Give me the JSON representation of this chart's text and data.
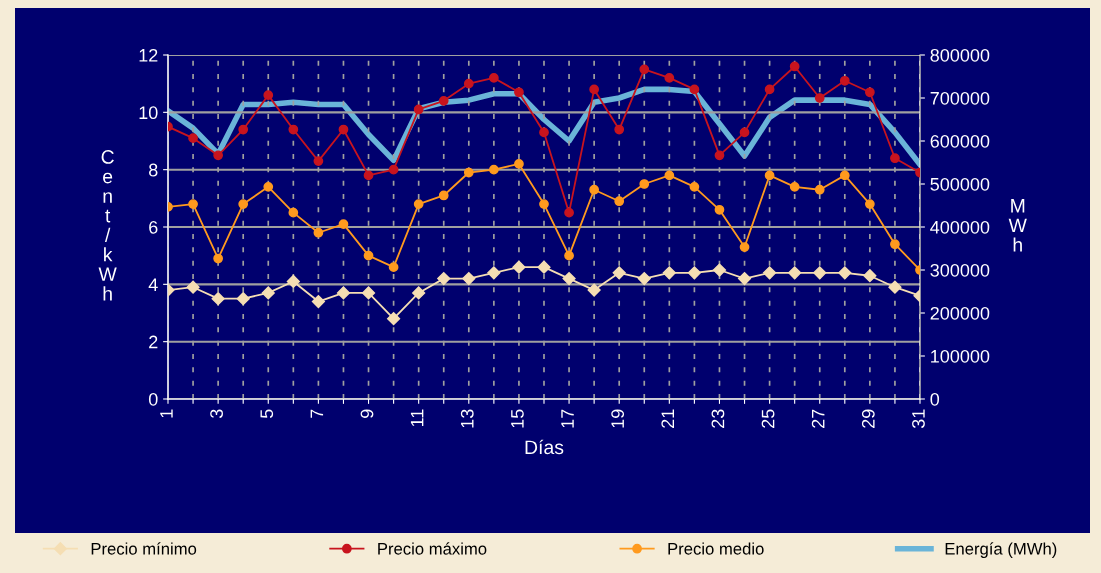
{
  "chart_data": {
    "type": "line",
    "xlabel": "Días",
    "ylabel": "Cent/kWh",
    "y2label": "MWh",
    "x": [
      1,
      2,
      3,
      4,
      5,
      6,
      7,
      8,
      9,
      10,
      11,
      12,
      13,
      14,
      15,
      16,
      17,
      18,
      19,
      20,
      21,
      22,
      23,
      24,
      25,
      26,
      27,
      28,
      29,
      30,
      31
    ],
    "xlim": [
      1,
      31
    ],
    "xticks": [
      1,
      {
        "value": 2,
        "label": null
      },
      3,
      {
        "value": 4,
        "label": null
      },
      5,
      {
        "value": 6,
        "label": null
      },
      7,
      {
        "value": 8,
        "label": null
      },
      9,
      {
        "value": 10,
        "label": null
      },
      11,
      {
        "value": 12,
        "label": null
      },
      13,
      {
        "value": 14,
        "label": null
      },
      15,
      {
        "value": 16,
        "label": null
      },
      17,
      {
        "value": 18,
        "label": null
      },
      19,
      {
        "value": 20,
        "label": null
      },
      21,
      {
        "value": 22,
        "label": null
      },
      23,
      {
        "value": 24,
        "label": null
      },
      25,
      {
        "value": 26,
        "label": null
      },
      27,
      {
        "value": 28,
        "label": null
      },
      29,
      {
        "value": 30,
        "label": null
      },
      31
    ],
    "ylim": [
      0,
      12
    ],
    "yticks": [
      0,
      2,
      4,
      6,
      8,
      10,
      12
    ],
    "y2lim": [
      0,
      800000
    ],
    "y2ticks": [
      0,
      100000,
      200000,
      300000,
      400000,
      500000,
      600000,
      700000,
      800000
    ],
    "grid": true,
    "legend": "bottom",
    "series": [
      {
        "name": "Precio mínimo",
        "color": "#f5deb3",
        "marker": "diamond",
        "values": [
          3.8,
          3.9,
          3.5,
          3.5,
          3.7,
          4.1,
          3.4,
          3.7,
          3.7,
          2.8,
          3.7,
          4.2,
          4.2,
          4.4,
          4.6,
          4.6,
          4.2,
          3.8,
          4.4,
          4.2,
          4.4,
          4.4,
          4.5,
          4.2,
          4.4,
          4.4,
          4.4,
          4.4,
          4.3,
          3.9,
          3.6
        ]
      },
      {
        "name": "Precio máximo",
        "color": "#c8141e",
        "marker": "circle",
        "values": [
          9.5,
          9.1,
          8.5,
          9.4,
          10.6,
          9.4,
          8.3,
          9.4,
          7.8,
          8.0,
          10.1,
          10.4,
          11.0,
          11.2,
          10.7,
          9.3,
          6.5,
          10.8,
          9.4,
          11.5,
          11.2,
          10.8,
          8.5,
          9.3,
          10.8,
          11.6,
          10.5,
          11.1,
          10.7,
          8.4,
          7.9
        ]
      },
      {
        "name": "Precio medio",
        "color": "#ff9a1e",
        "marker": "circle",
        "values": [
          6.7,
          6.8,
          4.9,
          6.8,
          7.4,
          6.5,
          5.8,
          6.1,
          5.0,
          4.6,
          6.8,
          7.1,
          7.9,
          8.0,
          8.2,
          6.8,
          5.0,
          7.3,
          6.9,
          7.5,
          7.8,
          7.4,
          6.6,
          5.3,
          7.8,
          7.4,
          7.3,
          7.8,
          6.8,
          5.4,
          4.5
        ]
      },
      {
        "name": "Energía (MWh)",
        "color": "#6ab4d8",
        "marker": "none",
        "axis": "y2",
        "values": [
          670000,
          630000,
          570000,
          685000,
          685000,
          690000,
          685000,
          685000,
          615000,
          555000,
          675000,
          690000,
          695000,
          710000,
          710000,
          650000,
          600000,
          690000,
          700000,
          720000,
          720000,
          715000,
          640000,
          565000,
          655000,
          695000,
          695000,
          695000,
          685000,
          620000,
          545000
        ]
      }
    ]
  }
}
